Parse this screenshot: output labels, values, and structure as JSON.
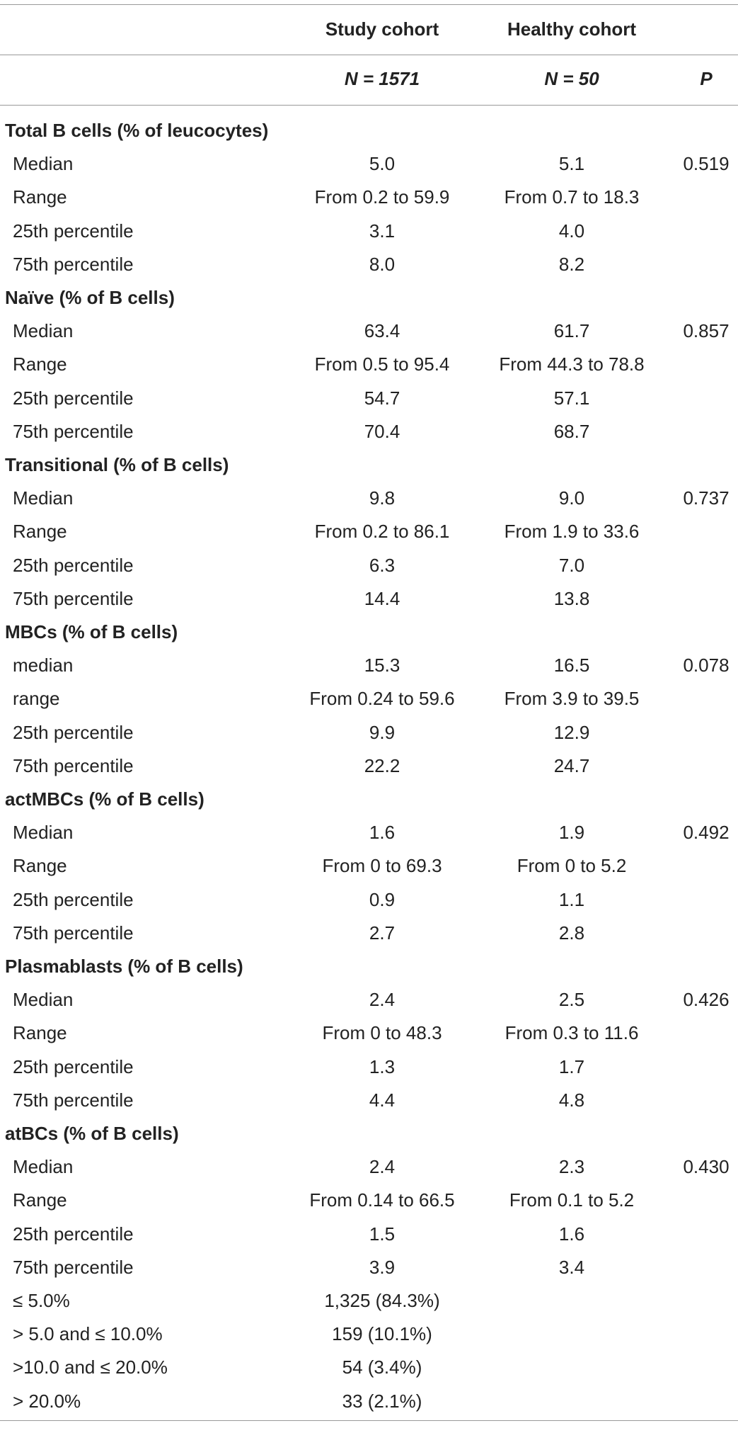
{
  "table": {
    "header": {
      "columns": [
        "Study cohort",
        "Healthy cohort"
      ],
      "n": [
        "N = 1571",
        "N = 50"
      ],
      "p": "P"
    },
    "sections": [
      {
        "title": "Total B cells (% of leucocytes)",
        "rows": [
          {
            "label": "Median",
            "study": "5.0",
            "healthy": "5.1",
            "p": "0.519"
          },
          {
            "label": "Range",
            "study": "From 0.2 to 59.9",
            "healthy": "From 0.7 to 18.3"
          },
          {
            "label": "25th percentile",
            "study": "3.1",
            "healthy": "4.0"
          },
          {
            "label": "75th percentile",
            "study": "8.0",
            "healthy": "8.2"
          }
        ]
      },
      {
        "title": "Naïve (% of B cells)",
        "rows": [
          {
            "label": "Median",
            "study": "63.4",
            "healthy": "61.7",
            "p": "0.857"
          },
          {
            "label": "Range",
            "study": "From 0.5 to 95.4",
            "healthy": "From 44.3 to 78.8"
          },
          {
            "label": "25th percentile",
            "study": "54.7",
            "healthy": "57.1"
          },
          {
            "label": "75th percentile",
            "study": "70.4",
            "healthy": "68.7"
          }
        ]
      },
      {
        "title": "Transitional (% of B cells)",
        "rows": [
          {
            "label": "Median",
            "study": "9.8",
            "healthy": "9.0",
            "p": "0.737"
          },
          {
            "label": "Range",
            "study": "From 0.2 to 86.1",
            "healthy": "From 1.9 to 33.6"
          },
          {
            "label": "25th percentile",
            "study": "6.3",
            "healthy": "7.0"
          },
          {
            "label": "75th percentile",
            "study": "14.4",
            "healthy": "13.8"
          }
        ]
      },
      {
        "title": "MBCs (% of B cells)",
        "rows": [
          {
            "label": "median",
            "study": "15.3",
            "healthy": "16.5",
            "p": "0.078"
          },
          {
            "label": "range",
            "study": "From 0.24 to 59.6",
            "healthy": "From 3.9 to 39.5"
          },
          {
            "label": "25th percentile",
            "study": "9.9",
            "healthy": "12.9"
          },
          {
            "label": "75th percentile",
            "study": "22.2",
            "healthy": "24.7"
          }
        ]
      },
      {
        "title": "actMBCs (% of B cells)",
        "rows": [
          {
            "label": "Median",
            "study": "1.6",
            "healthy": "1.9",
            "p": "0.492"
          },
          {
            "label": "Range",
            "study": "From 0 to 69.3",
            "healthy": "From 0 to 5.2"
          },
          {
            "label": "25th percentile",
            "study": "0.9",
            "healthy": "1.1"
          },
          {
            "label": "75th percentile",
            "study": "2.7",
            "healthy": "2.8"
          }
        ]
      },
      {
        "title": "Plasmablasts (% of B cells)",
        "rows": [
          {
            "label": "Median",
            "study": "2.4",
            "healthy": "2.5",
            "p": "0.426"
          },
          {
            "label": "Range",
            "study": "From 0 to 48.3",
            "healthy": "From 0.3 to 11.6"
          },
          {
            "label": "25th percentile",
            "study": "1.3",
            "healthy": "1.7"
          },
          {
            "label": "75th percentile",
            "study": "4.4",
            "healthy": "4.8"
          }
        ]
      },
      {
        "title": "atBCs (% of B cells)",
        "rows": [
          {
            "label": "Median",
            "study": "2.4",
            "healthy": "2.3",
            "p": "0.430"
          },
          {
            "label": "Range",
            "study": "From 0.14 to 66.5",
            "healthy": "From 0.1 to 5.2"
          },
          {
            "label": "25th percentile",
            "study": "1.5",
            "healthy": "1.6"
          },
          {
            "label": "75th percentile",
            "study": "3.9",
            "healthy": "3.4"
          },
          {
            "label": "≤ 5.0%",
            "study": "1,325 (84.3%)"
          },
          {
            "label": "> 5.0 and ≤ 10.0%",
            "study": "159 (10.1%)"
          },
          {
            "label": ">10.0 and ≤ 20.0%",
            "study": "54 (3.4%)"
          },
          {
            "label": "> 20.0%",
            "study": "33 (2.1%)"
          }
        ]
      }
    ]
  }
}
